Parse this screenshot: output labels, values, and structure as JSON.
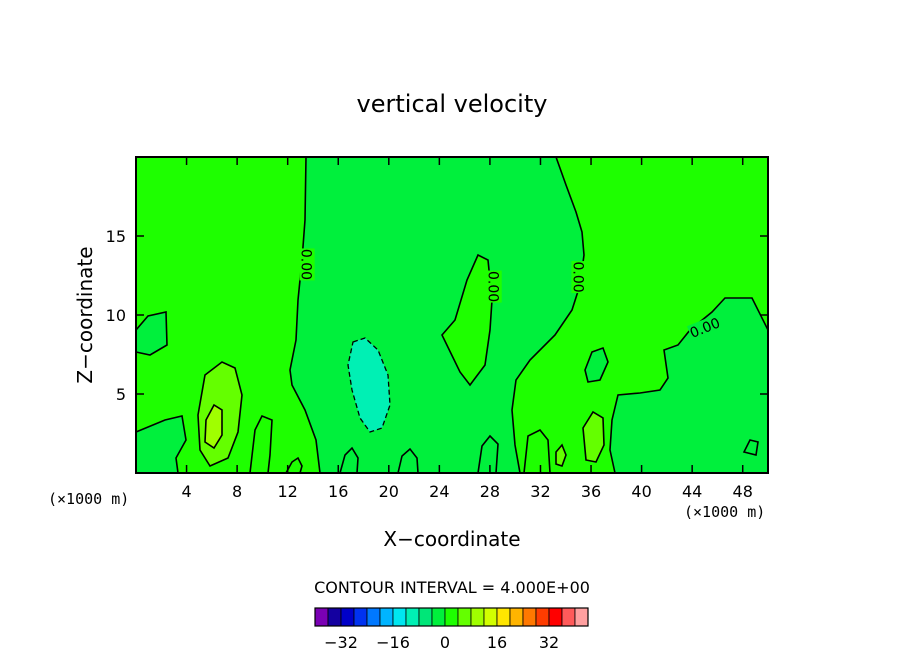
{
  "chart_data": {
    "type": "contour",
    "title": "vertical velocity",
    "xlabel": "X−coordinate",
    "ylabel": "Z−coordinate",
    "x_unit": "(×1000 m)",
    "y_unit": "(×1000 m)",
    "xlim": [
      0,
      50
    ],
    "ylim": [
      0,
      20
    ],
    "x_ticks": [
      4,
      8,
      12,
      16,
      20,
      24,
      28,
      32,
      36,
      40,
      44,
      48
    ],
    "y_ticks": [
      5,
      10,
      15
    ],
    "contour_interval_text": "CONTOUR INTERVAL = 4.000E+00",
    "contour_labels": [
      {
        "text": "0.00",
        "x": 13.5,
        "y": 13.2
      },
      {
        "text": "0.00",
        "x": 28.3,
        "y": 11.8
      },
      {
        "text": "0.00",
        "x": 35.0,
        "y": 12.4
      },
      {
        "text": "0.00",
        "x": 45.0,
        "y": 9.2
      }
    ],
    "colorbar": {
      "colors": [
        "#7a00b4",
        "#1400a0",
        "#0000c8",
        "#0032f0",
        "#0078ff",
        "#00b4ff",
        "#00e6f0",
        "#00f0b4",
        "#00e678",
        "#00f03c",
        "#1eff00",
        "#64ff00",
        "#a0ff00",
        "#d2ff00",
        "#ffe600",
        "#ffb400",
        "#ff7800",
        "#ff3c00",
        "#ff0000",
        "#ff5a5a",
        "#ffa0a0"
      ],
      "tick_labels": [
        "−32",
        "−16",
        "0",
        "16",
        "32"
      ],
      "tick_values": [
        -32,
        -16,
        0,
        16,
        32
      ]
    }
  }
}
